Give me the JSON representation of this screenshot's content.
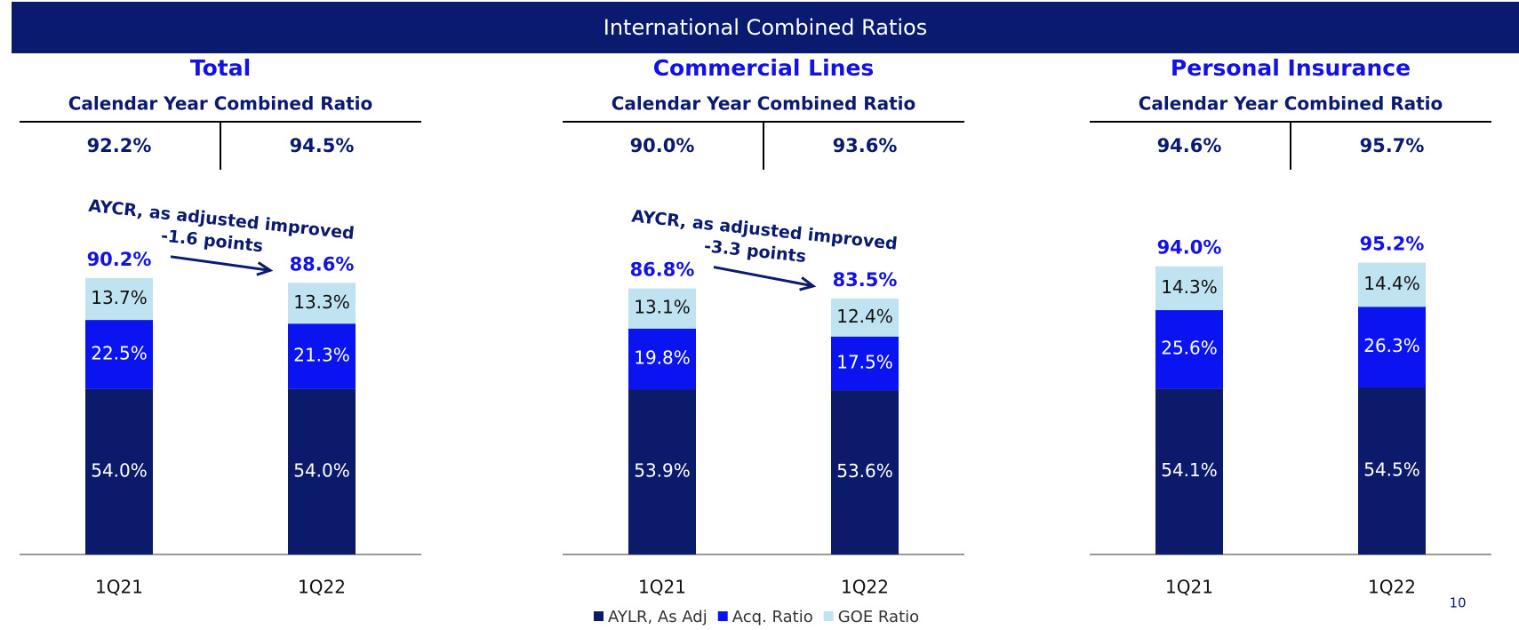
{
  "header": {
    "title": "International Combined Ratios"
  },
  "page_number": "10",
  "chart_data": [
    {
      "type": "stacked_bar",
      "title": "Total",
      "subtitle": "Calendar Year Combined Ratio",
      "calendar_year": [
        "92.2%",
        "94.5%"
      ],
      "categories": [
        "1Q21",
        "1Q22"
      ],
      "ylim": [
        0,
        100
      ],
      "series": [
        {
          "color": "#0c1a6b",
          "values": [
            54.0,
            54.0
          ],
          "value_labels": [
            "54.0%",
            "54.0%"
          ]
        },
        {
          "color": "#0a14f0",
          "values": [
            22.5,
            21.3
          ],
          "value_labels": [
            "22.5%",
            "21.3%"
          ]
        },
        {
          "color": "#c0e3f1",
          "values": [
            13.7,
            13.3
          ],
          "value_labels": [
            "13.7%",
            "13.3%"
          ]
        }
      ],
      "totals": [
        90.2,
        88.6
      ],
      "total_labels": [
        "90.2%",
        "88.6%"
      ],
      "annotation": [
        "AYCR, as adjusted improved",
        "-1.6 points"
      ]
    },
    {
      "type": "stacked_bar",
      "title": "Commercial Lines",
      "subtitle": "Calendar Year Combined Ratio",
      "calendar_year": [
        "90.0%",
        "93.6%"
      ],
      "categories": [
        "1Q21",
        "1Q22"
      ],
      "ylim": [
        0,
        100
      ],
      "series": [
        {
          "name": "AYLR, As Adj",
          "color": "#0c1a6b",
          "values": [
            53.9,
            53.6
          ],
          "value_labels": [
            "53.9%",
            "53.6%"
          ]
        },
        {
          "name": "Acq. Ratio",
          "color": "#0a14f0",
          "values": [
            19.8,
            17.5
          ],
          "value_labels": [
            "19.8%",
            "17.5%"
          ]
        },
        {
          "name": "GOE Ratio",
          "color": "#c0e3f1",
          "values": [
            13.1,
            12.4
          ],
          "value_labels": [
            "13.1%",
            "12.4%"
          ]
        }
      ],
      "totals": [
        86.8,
        83.5
      ],
      "total_labels": [
        "86.8%",
        "83.5%"
      ],
      "annotation": [
        "AYCR, as adjusted improved",
        "-3.3 points"
      ]
    },
    {
      "type": "stacked_bar",
      "title": "Personal Insurance",
      "subtitle": "Calendar Year Combined Ratio",
      "calendar_year": [
        "94.6%",
        "95.7%"
      ],
      "categories": [
        "1Q21",
        "1Q22"
      ],
      "ylim": [
        0,
        100
      ],
      "series": [
        {
          "color": "#0c1a6b",
          "values": [
            54.1,
            54.5
          ],
          "value_labels": [
            "54.1%",
            "54.5%"
          ]
        },
        {
          "color": "#0a14f0",
          "values": [
            25.6,
            26.3
          ],
          "value_labels": [
            "25.6%",
            "26.3%"
          ]
        },
        {
          "color": "#c0e3f1",
          "values": [
            14.3,
            14.4
          ],
          "value_labels": [
            "14.3%",
            "14.4%"
          ]
        }
      ],
      "totals": [
        94.0,
        95.2
      ],
      "total_labels": [
        "94.0%",
        "95.2%"
      ]
    }
  ]
}
